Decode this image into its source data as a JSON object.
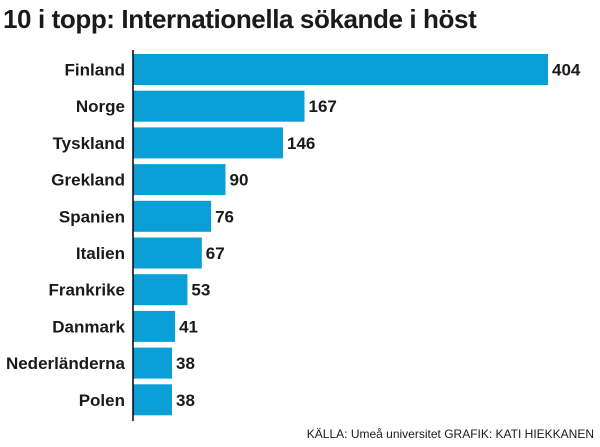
{
  "chart_data": {
    "type": "bar",
    "orientation": "horizontal",
    "title": "10 i topp: Internationella sökande i höst",
    "categories": [
      "Finland",
      "Norge",
      "Tyskland",
      "Grekland",
      "Spanien",
      "Italien",
      "Frankrike",
      "Danmark",
      "Nederländerna",
      "Polen"
    ],
    "values": [
      404,
      167,
      146,
      90,
      76,
      67,
      53,
      41,
      38,
      38
    ],
    "xlim": [
      0,
      404
    ],
    "grid": false,
    "legend": "none",
    "bar_color": "#0a9fd6",
    "source": "KÄLLA: Umeå universitet GRAFIK: KATI HIEKKANEN"
  }
}
